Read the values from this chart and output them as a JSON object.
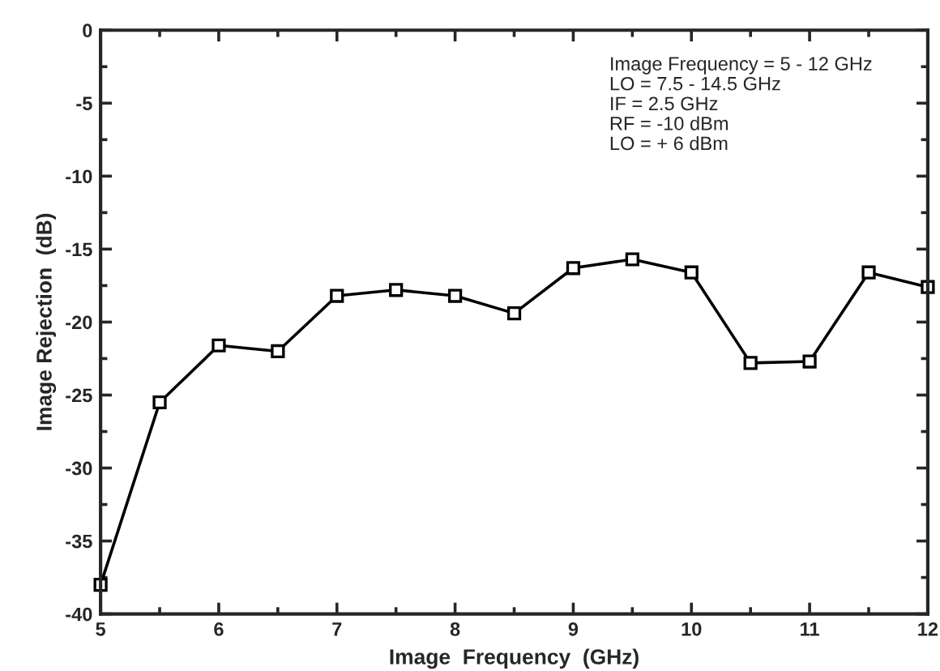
{
  "chart_data": {
    "type": "line",
    "xlabel": "Image  Frequency  (GHz)",
    "ylabel": "Image Rejection  (dB)",
    "x": [
      5,
      5.5,
      6,
      6.5,
      7,
      7.5,
      8,
      8.5,
      9,
      9.5,
      10,
      10.5,
      11,
      11.5,
      12
    ],
    "series": [
      {
        "color": "#000000",
        "values": [
          -38.0,
          -25.5,
          -21.6,
          -22.0,
          -18.2,
          -17.8,
          -18.2,
          -19.4,
          -16.3,
          -15.7,
          -16.6,
          -22.8,
          -22.7,
          -16.6,
          -17.6
        ]
      }
    ],
    "xlim": [
      5,
      12
    ],
    "xticks": [
      5,
      6,
      7,
      8,
      9,
      10,
      11,
      12
    ],
    "ylim": [
      -40,
      0
    ],
    "yticks": [
      -40,
      -35,
      -30,
      -25,
      -20,
      -15,
      -10,
      -5,
      0
    ],
    "marker": "square",
    "line_style": "solid",
    "grid": false,
    "legend": false,
    "annotations": [
      "Image Frequency = 5 - 12 GHz\nLO = 7.5 - 14.5 GHz\nIF = 2.5 GHz\nRF = -10 dBm\nLO = + 6 dBm"
    ]
  }
}
